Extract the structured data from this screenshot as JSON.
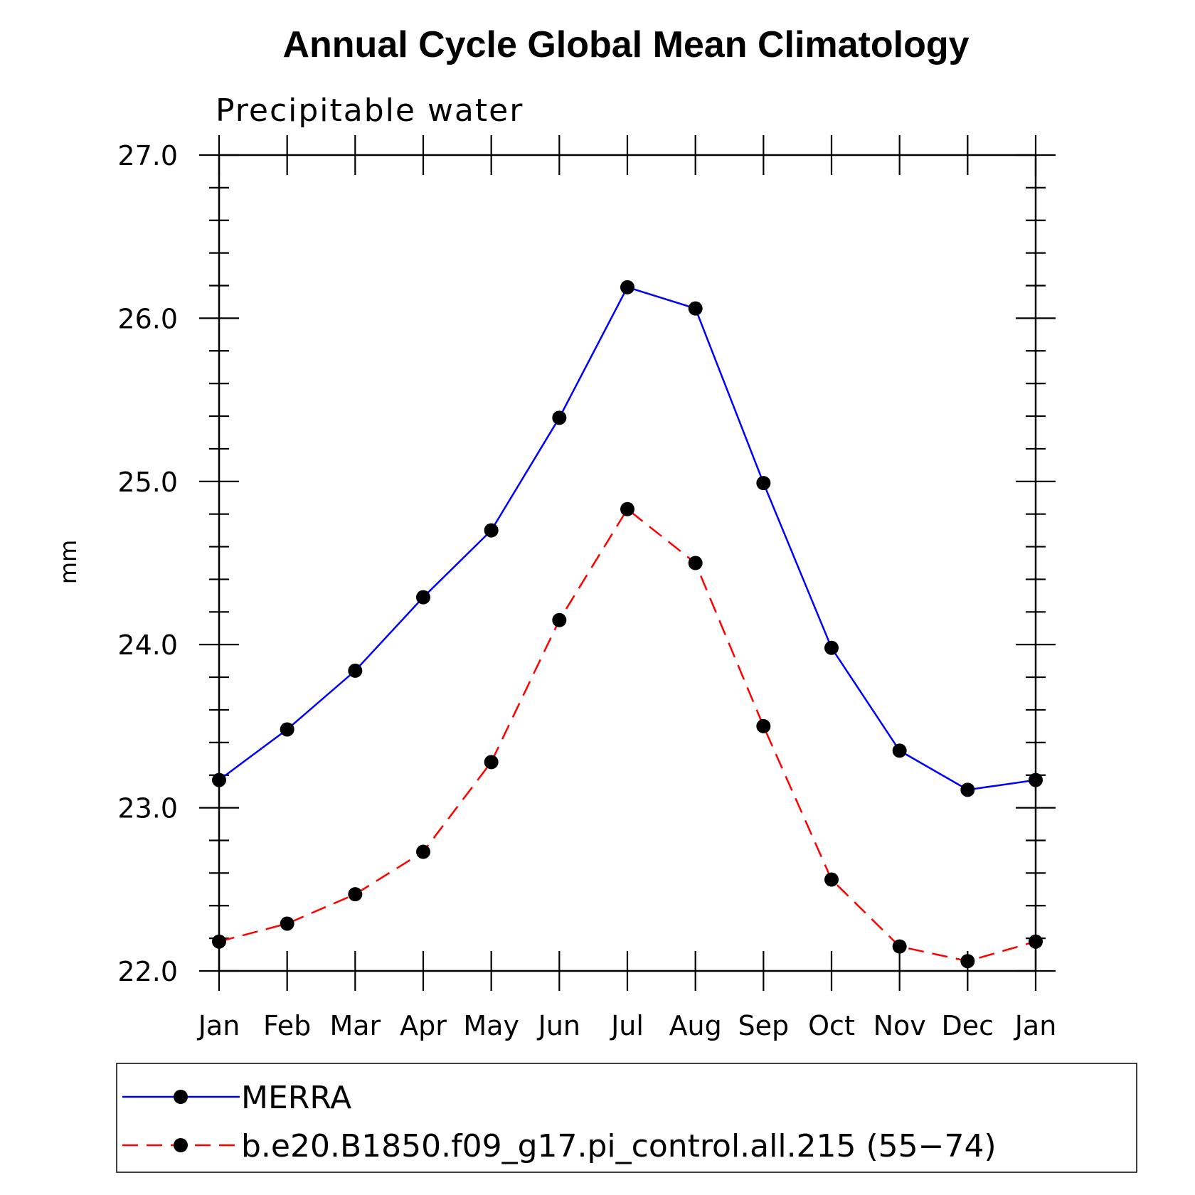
{
  "chart_data": {
    "type": "line",
    "title": "Annual Cycle Global Mean Climatology",
    "subtitle": "Precipitable water",
    "xlabel": "",
    "ylabel": "mm",
    "categories": [
      "Jan",
      "Feb",
      "Mar",
      "Apr",
      "May",
      "Jun",
      "Jul",
      "Aug",
      "Sep",
      "Oct",
      "Nov",
      "Dec",
      "Jan"
    ],
    "ylim": [
      22.0,
      27.0
    ],
    "yticks": [
      "22.0",
      "23.0",
      "24.0",
      "25.0",
      "26.0",
      "27.0"
    ],
    "grid": false,
    "legend_position": "bottom",
    "series": [
      {
        "name": "MERRA",
        "color": "#0000ff",
        "dash": "solid",
        "marker": "filled-circle",
        "values": [
          23.17,
          23.48,
          23.84,
          24.29,
          24.7,
          25.39,
          26.19,
          26.06,
          24.99,
          23.98,
          23.35,
          23.11,
          23.17
        ]
      },
      {
        "name": "b.e20.B1850.f09_g17.pi_control.all.215 (55−74)",
        "color": "#ff0000",
        "dash": "dashed",
        "marker": "filled-circle",
        "values": [
          22.18,
          22.29,
          22.47,
          22.73,
          23.28,
          24.15,
          24.83,
          24.5,
          23.5,
          22.56,
          22.15,
          22.06,
          22.18
        ]
      }
    ]
  }
}
